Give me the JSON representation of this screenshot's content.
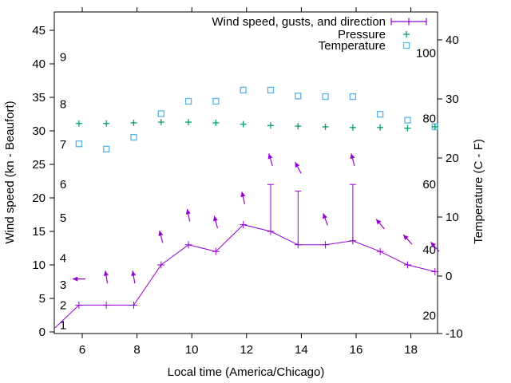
{
  "figure": {
    "background": "#ffffff",
    "axis_color": "#000000",
    "colors": {
      "wind": "#9400d3",
      "pressure": "#009e73",
      "temperature": "#56b4e9"
    }
  },
  "chart_data": {
    "type": "line",
    "title": "",
    "xlabel": "Local time (America/Chicago)",
    "ylabel_left": "Wind speed (kn - Beaufort)",
    "ylabel_right": "Temperature (C - F)",
    "xlim": [
      5,
      19
    ],
    "ylim_left_kn": [
      0,
      47.7
    ],
    "ylim_right_c": [
      -10,
      45
    ],
    "grid": false,
    "legend_position": "top-right-inside",
    "x_ticks": [
      6,
      8,
      10,
      12,
      14,
      16,
      18
    ],
    "left_ticks_kn": [
      0,
      5,
      10,
      15,
      20,
      25,
      30,
      35,
      40,
      45
    ],
    "right_ticks_c": [
      -10,
      0,
      10,
      20,
      30,
      40
    ],
    "beaufort_inner_labels": [
      {
        "b": "1",
        "kn": 1
      },
      {
        "b": "2",
        "kn": 4
      },
      {
        "b": "3",
        "kn": 7
      },
      {
        "b": "4",
        "kn": 11
      },
      {
        "b": "5",
        "kn": 17
      },
      {
        "b": "6",
        "kn": 22
      },
      {
        "b": "7",
        "kn": 28
      },
      {
        "b": "8",
        "kn": 34
      },
      {
        "b": "9",
        "kn": 41
      }
    ],
    "fahrenheit_inner_labels": [
      20,
      40,
      60,
      80,
      100
    ],
    "legend": [
      {
        "label": "Wind speed, gusts, and direction",
        "marker": "errorbar",
        "series": "wind"
      },
      {
        "label": "Pressure",
        "marker": "plus",
        "series": "pressure"
      },
      {
        "label": "Temperature",
        "marker": "open-square",
        "series": "temperature"
      }
    ],
    "x_hours": [
      5.88,
      6.88,
      7.88,
      8.88,
      9.88,
      10.88,
      11.88,
      12.88,
      13.88,
      14.88,
      15.88,
      16.88,
      17.88,
      18.88
    ],
    "series": [
      {
        "name": "wind_speed_kn",
        "axis": "left",
        "values": [
          4,
          4,
          4,
          10,
          13,
          12,
          16,
          15,
          13,
          13,
          13.6,
          12,
          10,
          9
        ]
      },
      {
        "name": "wind_gust_kn",
        "axis": "left",
        "values": [
          null,
          null,
          null,
          null,
          null,
          null,
          null,
          22,
          21,
          null,
          22,
          null,
          null,
          null
        ]
      },
      {
        "name": "pressure_plotted_level_kn_axis",
        "axis": "left",
        "note": "no pressure scale printed on chart; values are plotted height read on left axis",
        "values": [
          31.1,
          31.1,
          31.2,
          31.3,
          31.3,
          31.2,
          31.0,
          30.8,
          30.7,
          30.6,
          30.5,
          30.5,
          30.4,
          30.6
        ]
      },
      {
        "name": "temperature_c",
        "axis": "right",
        "values": [
          22.4,
          21.5,
          23.5,
          27.5,
          29.6,
          29.6,
          31.5,
          31.5,
          30.5,
          30.4,
          30.4,
          27.4,
          26.4,
          25.3
        ]
      }
    ],
    "wind_line_edge_start": {
      "x": 5.0,
      "kn": 0.6
    },
    "wind_arrows": {
      "note": "direction arrows; angle_deg 0 = pointing up, negative = leaning left",
      "level_kn": [
        7.9,
        8.2,
        8.2,
        14.2,
        17.4,
        16.4,
        20.0,
        25.7,
        24.5,
        16.8,
        25.7,
        16.1,
        13.8,
        12.7
      ],
      "angle_deg": [
        -90,
        -10,
        -10,
        -15,
        -12,
        -15,
        -13,
        -17,
        -28,
        -20,
        -15,
        -40,
        -42,
        -42
      ]
    }
  }
}
